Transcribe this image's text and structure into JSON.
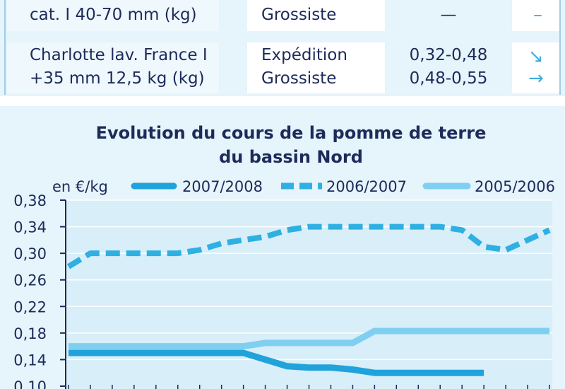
{
  "table": {
    "rows": [
      {
        "product_lines": [
          "",
          "cat. I 40-70 mm (kg)"
        ],
        "stages": [
          "",
          "Grossiste"
        ],
        "prices": [
          "",
          "—"
        ],
        "trends": [
          "",
          "–"
        ]
      },
      {
        "product_lines": [
          "Charlotte lav. France I",
          "+35 mm 12,5 kg (kg)"
        ],
        "stages": [
          "Expédition",
          "Grossiste"
        ],
        "prices": [
          "0,32-0,48",
          "0,48-0,55"
        ],
        "trends": [
          "↘",
          "→"
        ]
      }
    ]
  },
  "colors": {
    "s2007": "#1fa3da",
    "s2006": "#2eb0e2",
    "s2005": "#7fd0f0",
    "axis": "#1d2a5a",
    "grid": "#ffffff",
    "bg": "#e6f4fb"
  },
  "chart_data": {
    "type": "line",
    "title": "Evolution du cours de la pomme de terre du bassin Nord",
    "title_lines": [
      "Evolution du cours de la pomme de terre",
      "du bassin Nord"
    ],
    "ylabel": "en €/kg",
    "ylim": [
      0.1,
      0.38
    ],
    "yticks": [
      0.1,
      0.14,
      0.18,
      0.22,
      0.26,
      0.3,
      0.34,
      0.38
    ],
    "ytick_labels": [
      "0,10",
      "0,14",
      "0,18",
      "0,22",
      "0,26",
      "0,30",
      "0,34",
      "0,38"
    ],
    "x_count": 23,
    "legend_position": "top",
    "series": [
      {
        "name": "2007/2008",
        "style": "solid",
        "color_key": "s2007",
        "values": [
          0.15,
          0.15,
          0.15,
          0.15,
          0.15,
          0.15,
          0.15,
          0.15,
          0.15,
          0.14,
          0.13,
          0.128,
          0.128,
          0.125,
          0.12,
          0.12,
          0.12,
          0.12,
          0.12,
          0.12,
          null,
          null,
          null
        ]
      },
      {
        "name": "2006/2007",
        "style": "dashed",
        "color_key": "s2006",
        "values": [
          0.28,
          0.3,
          0.3,
          0.3,
          0.3,
          0.3,
          0.305,
          0.315,
          0.32,
          0.325,
          0.335,
          0.34,
          0.34,
          0.34,
          0.34,
          0.34,
          0.34,
          0.34,
          0.335,
          0.31,
          0.305,
          0.32,
          0.335
        ]
      },
      {
        "name": "2005/2006",
        "style": "solid",
        "color_key": "s2005",
        "values": [
          0.16,
          0.16,
          0.16,
          0.16,
          0.16,
          0.16,
          0.16,
          0.16,
          0.16,
          0.165,
          0.165,
          0.165,
          0.165,
          0.165,
          0.183,
          0.183,
          0.183,
          0.183,
          0.183,
          0.183,
          0.183,
          0.183,
          0.183
        ]
      }
    ]
  }
}
